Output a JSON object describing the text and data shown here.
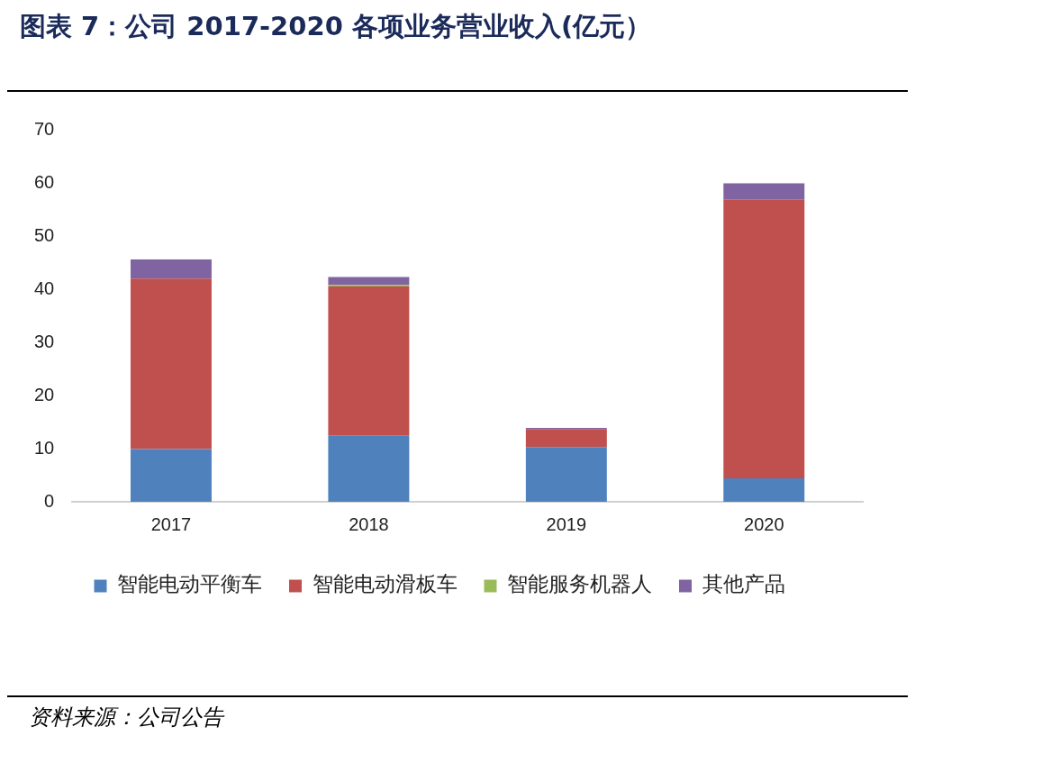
{
  "chart_data": {
    "type": "bar",
    "title": "图表 7：公司 2017-2020 各项业务营业收入(亿元）",
    "stacked": true,
    "categories": [
      "2017",
      "2018",
      "2019",
      "2020"
    ],
    "series": [
      {
        "name": "智能电动平衡车",
        "color": "#4f81bd",
        "values": [
          9.9,
          12.4,
          10.3,
          4.4
        ]
      },
      {
        "name": "智能电动滑板车",
        "color": "#c0504d",
        "values": [
          32.1,
          28.1,
          3.4,
          52.5
        ]
      },
      {
        "name": "智能服务机器人",
        "color": "#9bbb59",
        "values": [
          0,
          0.3,
          0,
          0
        ]
      },
      {
        "name": "其他产品",
        "color": "#8064a2",
        "values": [
          3.6,
          1.5,
          0.2,
          3.0
        ]
      }
    ],
    "ylim": [
      0,
      70
    ],
    "yticks": [
      0,
      10,
      20,
      30,
      40,
      50,
      60,
      70
    ],
    "grid": false,
    "legend": "bottom",
    "annotations": [
      "资料来源：公司公告"
    ]
  }
}
